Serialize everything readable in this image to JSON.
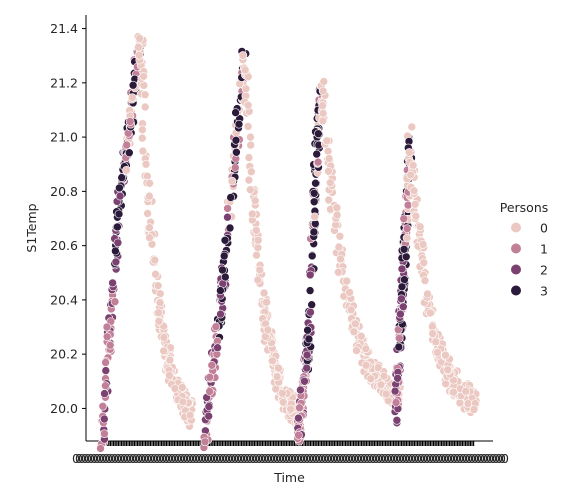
{
  "chart_data": {
    "type": "scatter",
    "xlabel": "Time",
    "ylabel": "S1Temp",
    "ylim": [
      19.88,
      21.45
    ],
    "yticks": [
      20.0,
      20.2,
      20.4,
      20.6,
      20.8,
      21.0,
      21.2,
      21.4
    ],
    "ytick_labels": [
      "20.0",
      "20.2",
      "20.4",
      "20.6",
      "20.8",
      "21.0",
      "21.2",
      "21.4"
    ],
    "xtick_label_sample": "0",
    "grid": false,
    "legend": {
      "title": "Persons",
      "placement": "right",
      "entries": [
        {
          "label": "0",
          "color": "#ebc9c2"
        },
        {
          "label": "1",
          "color": "#c27f98"
        },
        {
          "label": "2",
          "color": "#7b4170"
        },
        {
          "label": "3",
          "color": "#2c1a3a"
        }
      ]
    },
    "series": [
      {
        "name": "0",
        "color": "#ebc9c2"
      },
      {
        "name": "1",
        "color": "#c27f98"
      },
      {
        "name": "2",
        "color": "#7b4170"
      },
      {
        "name": "3",
        "color": "#2c1a3a"
      }
    ],
    "cycles": [
      {
        "rise_start": 19.9,
        "rise_1": 20.75,
        "rise_2": 21.05,
        "peak": 21.38,
        "after_peak": 20.6,
        "end": 19.92
      },
      {
        "rise_start": 19.9,
        "rise_1": 20.45,
        "rise_2": 20.95,
        "peak": 21.31,
        "after_peak": 20.7,
        "end": 19.92
      },
      {
        "rise_start": 19.9,
        "rise_1": 20.25,
        "rise_2": 20.9,
        "peak": 21.18,
        "after_peak": 20.45,
        "end": 20.0
      },
      {
        "rise_start": 20.0,
        "rise_1": 20.4,
        "rise_2": 20.7,
        "peak": 20.99,
        "after_peak": 20.5,
        "end": 19.98
      }
    ]
  }
}
